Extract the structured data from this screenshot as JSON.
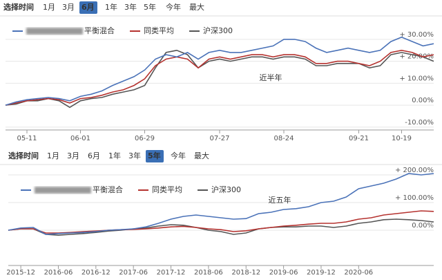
{
  "chart_data": [
    {
      "type": "line",
      "range_buttons_label": "选择时间",
      "range_buttons": [
        "1月",
        "3月",
        "6月",
        "1年",
        "3年",
        "5年",
        "今年",
        "最大"
      ],
      "selected_range": 2,
      "annotation": "近半年",
      "annotation_color": "#e02020",
      "categories": [
        null,
        null,
        "05-11",
        null,
        null,
        null,
        null,
        "06-01",
        null,
        null,
        null,
        null,
        null,
        "06-29",
        null,
        null,
        null,
        null,
        null,
        null,
        "07-27",
        null,
        null,
        null,
        null,
        null,
        "08-24",
        null,
        null,
        null,
        null,
        null,
        null,
        "09-21",
        null,
        null,
        null,
        "10-19",
        null,
        null,
        null
      ],
      "ylim": [
        -11.3,
        32.8
      ],
      "yticks": [
        {
          "value": 30,
          "label": "+ 30.00%"
        },
        {
          "value": 20,
          "label": "+ 20.00%"
        },
        {
          "value": 10,
          "label": "+ 10.00%"
        },
        {
          "value": 0,
          "label": "0.00%"
        },
        {
          "value": -10,
          "label": "-10.00%"
        }
      ],
      "grid": true,
      "series": [
        {
          "name": "平衡混合",
          "color": "#4a72b8",
          "values": [
            0,
            1.5,
            2.5,
            3,
            3.5,
            3,
            2,
            4,
            5,
            6.5,
            9,
            11,
            13,
            16,
            21,
            23,
            22,
            24,
            21,
            24,
            25,
            24,
            24,
            25,
            26,
            27,
            30,
            30,
            29,
            26,
            24,
            25,
            26,
            25,
            24,
            25,
            29,
            31,
            29,
            27,
            28
          ]
        },
        {
          "name": "同类平均",
          "color": "#b5322f",
          "values": [
            0,
            1,
            2,
            2.5,
            3,
            2.5,
            1,
            3,
            3.5,
            4.5,
            6,
            7,
            9,
            12,
            18,
            21,
            22,
            21,
            17,
            21,
            22,
            21,
            22,
            23,
            23,
            22,
            23,
            23,
            22,
            19,
            19,
            20,
            20,
            19,
            18,
            20,
            24,
            25,
            24,
            22,
            23
          ]
        },
        {
          "name": "沪深300",
          "color": "#555555",
          "values": [
            0,
            0.5,
            2,
            2,
            3,
            2,
            -1,
            2,
            3,
            3.5,
            5,
            6,
            7,
            9,
            17,
            24,
            25,
            23,
            17,
            20,
            21,
            20,
            21,
            22,
            22,
            21,
            22,
            22,
            21,
            18,
            18,
            19,
            19,
            19,
            17,
            18,
            23,
            24,
            23,
            22,
            20
          ]
        }
      ]
    },
    {
      "type": "line",
      "range_buttons_label": "选择时间",
      "range_buttons": [
        "1月",
        "3月",
        "6月",
        "1年",
        "3年",
        "5年",
        "今年",
        "最大"
      ],
      "selected_range": 5,
      "annotation": "近五年",
      "annotation_color": "#e02020",
      "categories": [
        null,
        "2015-12",
        null,
        null,
        "2016-06",
        null,
        null,
        "2016-12",
        null,
        null,
        "2017-06",
        null,
        null,
        "2017-12",
        null,
        null,
        "2018-06",
        null,
        null,
        "2018-12",
        null,
        null,
        "2019-06",
        null,
        null,
        "2019-12",
        null,
        null,
        "2020-06",
        null,
        null,
        null,
        null,
        null,
        null
      ],
      "ylim": [
        -127.5,
        227.5
      ],
      "yticks": [
        {
          "value": 200,
          "label": "+ 200.00%"
        },
        {
          "value": 100,
          "label": "+ 100.00%"
        },
        {
          "value": 0,
          "label": "0.00%"
        }
      ],
      "grid": true,
      "series": [
        {
          "name": "平衡混合",
          "color": "#4a72b8",
          "values": [
            0,
            8,
            10,
            -15,
            -12,
            -10,
            -8,
            -5,
            0,
            2,
            5,
            12,
            25,
            40,
            50,
            55,
            50,
            45,
            40,
            42,
            60,
            65,
            75,
            78,
            85,
            100,
            105,
            120,
            150,
            160,
            170,
            185,
            205,
            200,
            205
          ]
        },
        {
          "name": "同类平均",
          "color": "#b5322f",
          "values": [
            0,
            5,
            5,
            -10,
            -10,
            -8,
            -5,
            -3,
            0,
            2,
            3,
            5,
            8,
            12,
            14,
            10,
            5,
            2,
            -5,
            -2,
            5,
            10,
            15,
            18,
            22,
            25,
            25,
            30,
            40,
            45,
            55,
            60,
            65,
            70,
            68
          ]
        },
        {
          "name": "沪深300",
          "color": "#555555",
          "values": [
            0,
            5,
            5,
            -15,
            -18,
            -15,
            -12,
            -8,
            -3,
            0,
            5,
            8,
            15,
            20,
            18,
            10,
            0,
            -5,
            -15,
            -10,
            5,
            10,
            12,
            12,
            15,
            15,
            10,
            15,
            25,
            30,
            38,
            40,
            38,
            35,
            30
          ]
        }
      ]
    }
  ]
}
